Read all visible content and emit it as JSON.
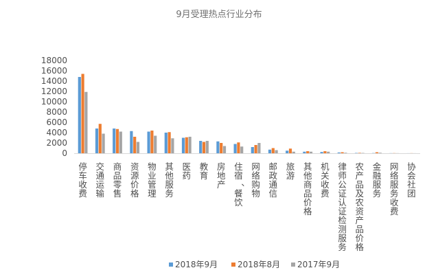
{
  "chart_data": {
    "type": "bar",
    "title": "9月受理热点行业分布",
    "xlabel": "",
    "ylabel": "",
    "ylim": [
      0,
      18000
    ],
    "yticks": [
      0,
      2000,
      4000,
      6000,
      8000,
      10000,
      12000,
      14000,
      16000,
      18000
    ],
    "grid": false,
    "legend_position": "bottom",
    "categories": [
      "停车收费",
      "交通运输",
      "商品零售",
      "资源价格",
      "物业管理",
      "其他服务",
      "医药",
      "教育",
      "房地产",
      "住宿、餐饮",
      "网络购物",
      "邮政通信",
      "旅游",
      "其他商品价格",
      "机关收费",
      "律师公证认证检测服务",
      "农产品及农资产品价格",
      "金融服务",
      "网络服务收费",
      "协会社团"
    ],
    "series": [
      {
        "name": "2018年9月",
        "color": "#5b9bd5",
        "values": [
          14800,
          4800,
          4800,
          4300,
          4200,
          4000,
          3000,
          2400,
          2300,
          1800,
          1200,
          700,
          500,
          300,
          250,
          150,
          60,
          40,
          20,
          10
        ]
      },
      {
        "name": "2018年8月",
        "color": "#ed7d31",
        "values": [
          15400,
          5700,
          4700,
          3200,
          4400,
          4100,
          3100,
          2200,
          2000,
          2100,
          1600,
          1000,
          900,
          400,
          400,
          200,
          80,
          200,
          30,
          20
        ]
      },
      {
        "name": "2017年9月",
        "color": "#a5a5a5",
        "values": [
          11900,
          3800,
          4200,
          2200,
          3400,
          2900,
          3200,
          2400,
          1400,
          1300,
          2000,
          600,
          300,
          300,
          300,
          100,
          60,
          100,
          20,
          10
        ]
      }
    ]
  }
}
